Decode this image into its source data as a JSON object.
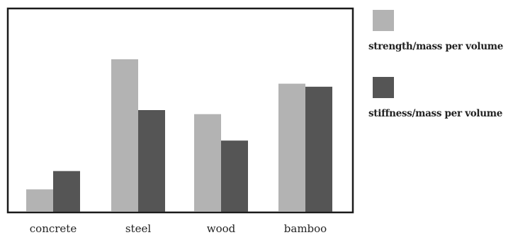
{
  "chart_data": {
    "type": "bar",
    "categories": [
      "concrete",
      "steel",
      "wood",
      "bamboo"
    ],
    "series": [
      {
        "name": "strength/mass per volume",
        "color": "#b3b3b3",
        "values": [
          2.2,
          15.0,
          9.6,
          12.6
        ]
      },
      {
        "name": "stiffness/mass per volume",
        "color": "#555555",
        "values": [
          4.0,
          10.0,
          7.0,
          12.3
        ]
      }
    ],
    "title": "",
    "xlabel": "",
    "ylabel": "",
    "ylim": [
      0,
      20
    ],
    "grid": false,
    "legend_position": "right"
  }
}
